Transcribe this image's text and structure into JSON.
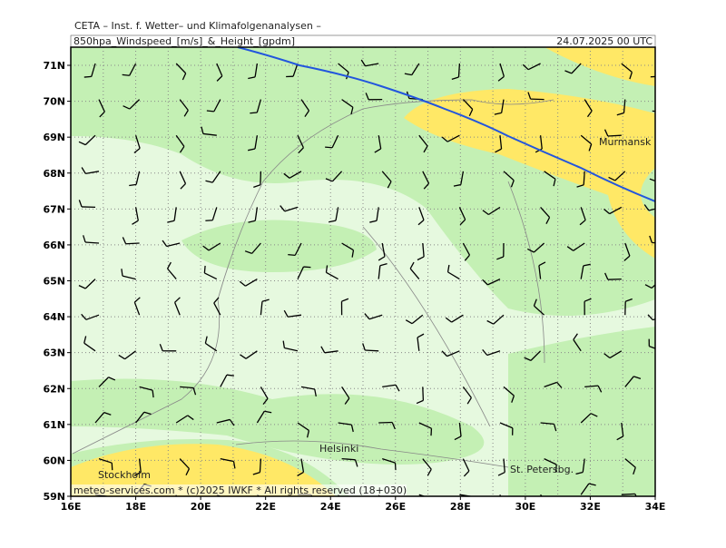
{
  "header": {
    "title": "CETA – Inst. f. Wetter– und Klimafolgenanalysen –",
    "subtitle": "850hpa_Windspeed_[m/s]_&_Height_[gpdm]",
    "date": "24.07.2025 00 UTC"
  },
  "footer": "meteo-services.com * (c)2025 IWKF * All rights reserved (18+030)",
  "lat_labels": [
    "71N",
    "70N",
    "69N",
    "68N",
    "67N",
    "66N",
    "65N",
    "64N",
    "63N",
    "62N",
    "61N",
    "60N",
    "59N"
  ],
  "lon_labels": [
    "16E",
    "18E",
    "20E",
    "22E",
    "24E",
    "26E",
    "28E",
    "30E",
    "32E",
    "34E"
  ],
  "cities": {
    "murmansk": "Murmansk",
    "helsinki": "Helsinki",
    "stockholm": "Stockholm",
    "st_petersburg": "St. Petersbg."
  }
}
